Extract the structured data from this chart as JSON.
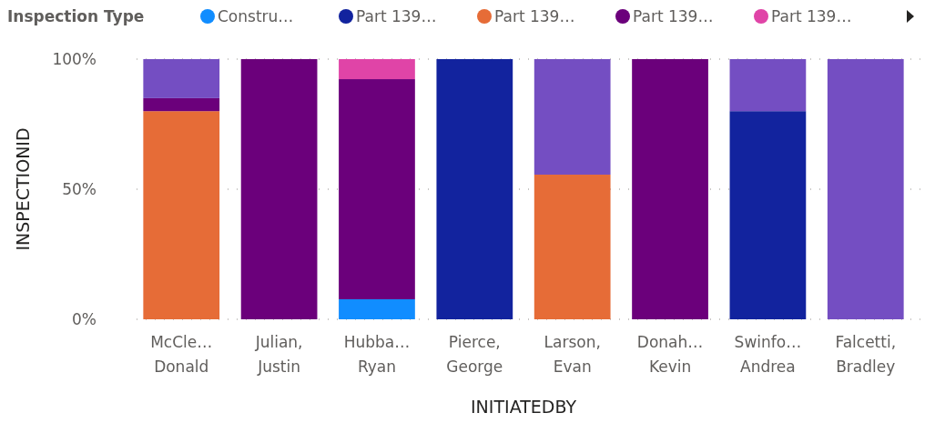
{
  "chart_data": {
    "type": "bar",
    "stacked": true,
    "legend_title": "Inspection Type",
    "legend": "top",
    "xlabel": "INITIATEDBY",
    "ylabel": "INSPECTIONID",
    "grid": "y",
    "categories": [
      "McCle… Donald",
      "Julian, Justin",
      "Hubba… Ryan",
      "Pierce, George",
      "Larson, Evan",
      "Donah… Kevin",
      "Swinfo… Andrea",
      "Falcetti, Bradley"
    ],
    "ylim": [
      0,
      100
    ],
    "yticks": [
      {
        "value": 0,
        "label": "0%"
      },
      {
        "value": 50,
        "label": "50%"
      },
      {
        "value": 100,
        "label": "100%"
      }
    ],
    "series": [
      {
        "name": "Constru…",
        "color": "#118dff",
        "values": [
          0,
          0,
          7.7,
          0,
          0,
          0,
          0,
          0
        ]
      },
      {
        "name": "Part 139…",
        "color": "#12239e",
        "values": [
          0,
          0,
          0,
          100,
          0,
          0,
          80,
          0
        ]
      },
      {
        "name": "Part 139…",
        "color": "#e66c37",
        "values": [
          80,
          0,
          0,
          0,
          55.6,
          0,
          0,
          0
        ]
      },
      {
        "name": "Part 139…",
        "color": "#6b007b",
        "values": [
          5,
          100,
          84.6,
          0,
          0,
          100,
          0,
          0
        ]
      },
      {
        "name": "Part 139…",
        "color": "#e044a7",
        "values": [
          0,
          0,
          7.7,
          0,
          0,
          0,
          0,
          0
        ]
      },
      {
        "color": "#744ec2",
        "values": [
          15,
          0,
          0,
          0,
          44.4,
          0,
          20,
          100
        ]
      }
    ]
  }
}
